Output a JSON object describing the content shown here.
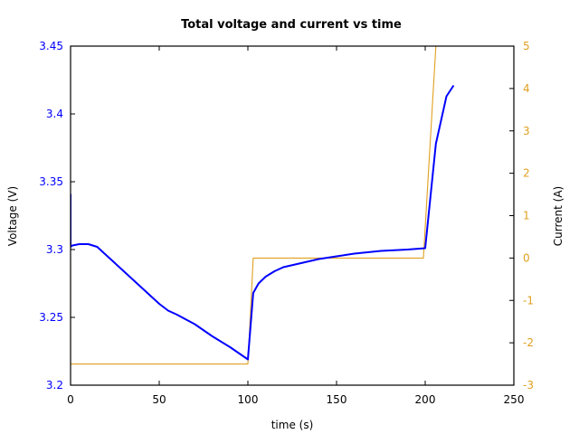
{
  "chart_data": {
    "type": "line",
    "title": "Total voltage and current vs time",
    "xlabel": "time (s)",
    "ylabel": "Voltage (V)",
    "y2label": "Current (A)",
    "xlim": [
      0,
      250
    ],
    "ylim": [
      3.2,
      3.45
    ],
    "y2lim": [
      -3,
      5
    ],
    "grid": false,
    "legend": "none",
    "x_ticks": [
      "0",
      "50",
      "100",
      "150",
      "200",
      "250"
    ],
    "y_ticks": [
      "3.2",
      "3.25",
      "3.3",
      "3.35",
      "3.4",
      "3.45"
    ],
    "y2_ticks": [
      "-3",
      "-2",
      "-1",
      "0",
      "1",
      "2",
      "3",
      "4",
      "5"
    ],
    "colors": {
      "voltage": "#0000ff",
      "current": "#e0a020",
      "axis": "#000000",
      "y_tick_label": "#0000ff",
      "y2_tick_label": "#e0a020"
    },
    "series": [
      {
        "name": "Voltage",
        "axis": "y",
        "x": [
          0,
          0,
          1,
          5,
          10,
          15,
          20,
          30,
          40,
          50,
          55,
          60,
          70,
          80,
          90,
          100,
          103,
          106,
          110,
          115,
          120,
          130,
          140,
          150,
          160,
          175,
          190,
          200,
          206,
          212,
          216
        ],
        "values": [
          3.341,
          3.302,
          3.303,
          3.304,
          3.304,
          3.302,
          3.296,
          3.284,
          3.272,
          3.26,
          3.255,
          3.252,
          3.245,
          3.236,
          3.228,
          3.219,
          3.268,
          3.275,
          3.28,
          3.284,
          3.287,
          3.29,
          3.293,
          3.295,
          3.297,
          3.299,
          3.3,
          3.301,
          3.378,
          3.413,
          3.421
        ]
      },
      {
        "name": "Current",
        "axis": "y2",
        "x": [
          0,
          0,
          100,
          103,
          199,
          199,
          206
        ],
        "values": [
          0,
          -2.5,
          -2.5,
          0,
          0,
          0,
          5
        ]
      }
    ]
  }
}
